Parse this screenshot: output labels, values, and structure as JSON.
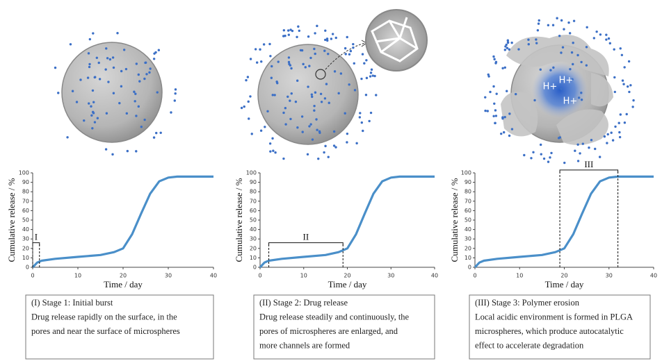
{
  "chart_data": [
    {
      "type": "line",
      "xlabel": "Time / day",
      "ylabel": "Cumulative release / %",
      "x": [
        0,
        1,
        2,
        5,
        10,
        15,
        18,
        20,
        22,
        24,
        26,
        28,
        30,
        32,
        35,
        40
      ],
      "values": [
        0,
        5,
        7,
        9,
        11,
        13,
        16,
        20,
        35,
        57,
        78,
        91,
        95,
        96,
        96,
        96
      ],
      "color": "#4a8fc9",
      "xlim": [
        0,
        40
      ],
      "ylim": [
        0,
        100
      ],
      "xticks": [
        0,
        10,
        20,
        30,
        40
      ],
      "yticks": [
        0,
        10,
        20,
        30,
        40,
        50,
        60,
        70,
        80,
        90,
        100
      ],
      "annotations": [
        {
          "label": "I",
          "x": [
            0,
            1.5
          ],
          "y": 26
        }
      ],
      "caption": [
        "(I) Stage 1: Initial burst",
        "Drug release rapidly on the surface, in the",
        "pores and near the surface of microspheres"
      ]
    },
    {
      "type": "line",
      "xlabel": "Time / day",
      "ylabel": "Cumulative release / %",
      "x": [
        0,
        1,
        2,
        5,
        10,
        15,
        18,
        20,
        22,
        24,
        26,
        28,
        30,
        32,
        35,
        40
      ],
      "values": [
        0,
        5,
        7,
        9,
        11,
        13,
        16,
        20,
        35,
        57,
        78,
        91,
        95,
        96,
        96,
        96
      ],
      "color": "#4a8fc9",
      "xlim": [
        0,
        40
      ],
      "ylim": [
        0,
        100
      ],
      "xticks": [
        0,
        10,
        20,
        30,
        40
      ],
      "yticks": [
        0,
        10,
        20,
        30,
        40,
        50,
        60,
        70,
        80,
        90,
        100
      ],
      "annotations": [
        {
          "label": "II",
          "x": [
            2,
            19
          ],
          "y": 26
        }
      ],
      "caption": [
        "(II) Stage 2: Drug release",
        "Drug release steadily and continuously, the",
        "pores of microspheres are enlarged, and",
        "more channels are formed"
      ]
    },
    {
      "type": "line",
      "xlabel": "Time / day",
      "ylabel": "Cumulative release / %",
      "x": [
        0,
        1,
        2,
        5,
        10,
        15,
        18,
        20,
        22,
        24,
        26,
        28,
        30,
        32,
        35,
        40
      ],
      "values": [
        0,
        5,
        7,
        9,
        11,
        13,
        16,
        20,
        35,
        57,
        78,
        91,
        95,
        96,
        96,
        96
      ],
      "color": "#4a8fc9",
      "xlim": [
        0,
        40
      ],
      "ylim": [
        0,
        100
      ],
      "xticks": [
        0,
        10,
        20,
        30,
        40
      ],
      "yticks": [
        0,
        10,
        20,
        30,
        40,
        50,
        60,
        70,
        80,
        90,
        100
      ],
      "annotations": [
        {
          "label": "III",
          "x": [
            19,
            32
          ],
          "y": 103
        }
      ],
      "caption": [
        "(III) Stage 3: Polymer erosion",
        "Local acidic environment is formed in PLGA",
        "microspheres, which produce autocatalytic",
        "effect to accelerate degradation"
      ],
      "illustration_labels": [
        "H+",
        "H+",
        "H+"
      ]
    }
  ]
}
